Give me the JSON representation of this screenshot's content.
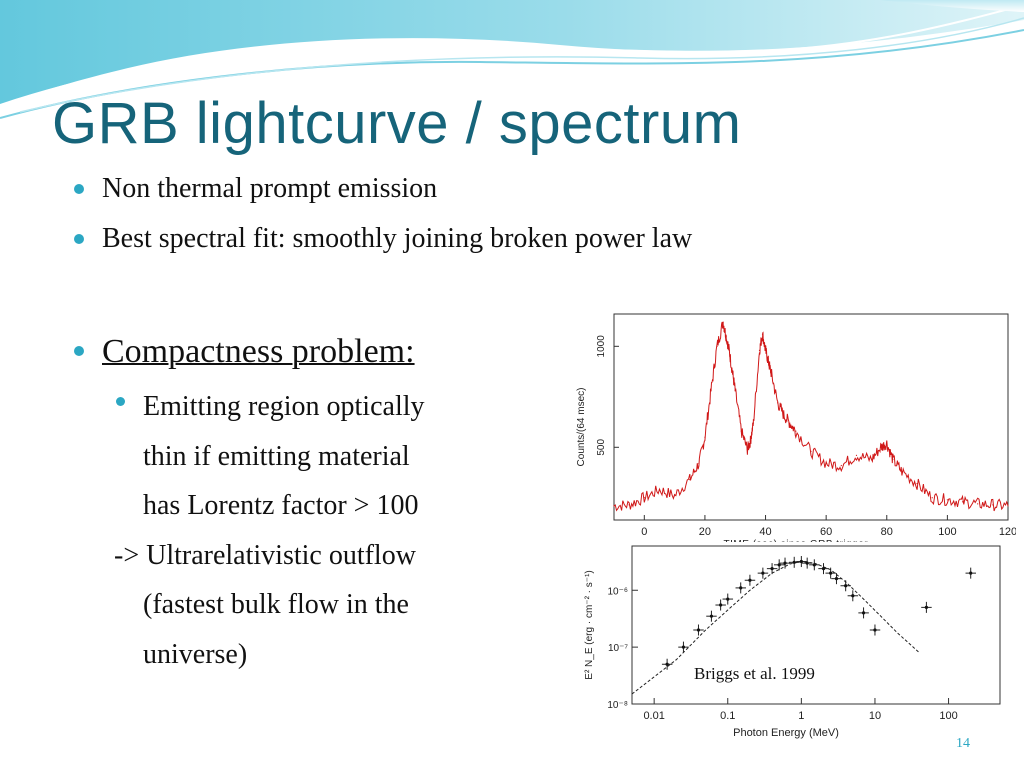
{
  "slide": {
    "title": "GRB lightcurve / spectrum",
    "bullets": [
      "Non thermal prompt emission",
      "Best spectral fit: smoothly joining broken power law"
    ],
    "heading": "Compactness problem:",
    "sub_lines": [
      "Emitting region optically",
      "thin if emitting material",
      "has Lorentz factor > 100",
      "-> Ultrarelativistic outflow",
      "(fastest bulk flow in the",
      "universe)"
    ],
    "credit": "Briggs et al. 1999",
    "page_number": "14",
    "accent_color": "#2ba7c3",
    "title_color": "#16647a"
  },
  "chart_data": [
    {
      "type": "line",
      "xlabel": "TIME (sec) since GRB trigger",
      "ylabel": "Counts/(64 msec)",
      "x_ticks": [
        "0",
        "20",
        "40",
        "60",
        "80",
        "100",
        "120"
      ],
      "y_ticks": [
        "500",
        "1000"
      ],
      "xlim": [
        -10,
        120
      ],
      "ylim": [
        140,
        1160
      ],
      "color": "#d01818",
      "x": [
        -10,
        -5,
        0,
        5,
        10,
        15,
        18,
        20,
        22,
        24,
        26,
        27,
        28,
        29,
        30,
        32,
        34,
        35,
        36,
        38,
        39,
        40,
        41,
        42,
        44,
        46,
        48,
        50,
        55,
        60,
        65,
        70,
        75,
        78,
        80,
        82,
        85,
        90,
        95,
        100,
        105,
        110,
        115,
        120
      ],
      "y": [
        210,
        215,
        250,
        290,
        260,
        340,
        420,
        550,
        780,
        1000,
        1120,
        1050,
        980,
        880,
        780,
        580,
        490,
        530,
        620,
        980,
        1060,
        980,
        920,
        860,
        720,
        660,
        620,
        580,
        480,
        420,
        410,
        460,
        440,
        500,
        520,
        440,
        380,
        320,
        250,
        240,
        230,
        220,
        215,
        210
      ]
    },
    {
      "type": "scatter",
      "xlabel": "Photon Energy (MeV)",
      "ylabel": "E² N_E (erg · cm⁻² · s⁻¹)",
      "x_ticks": [
        "0.01",
        "0.1",
        "1",
        "10",
        "100"
      ],
      "y_ticks": [
        "10⁻⁸",
        "10⁻⁷",
        "10⁻⁶"
      ],
      "xscale": "log",
      "yscale": "log",
      "xlim": [
        0.005,
        500
      ],
      "ylim": [
        1e-08,
        6e-06
      ],
      "series": [
        {
          "x": [
            0.015,
            0.025,
            0.04,
            0.06,
            0.08,
            0.1,
            0.15,
            0.2,
            0.3,
            0.4,
            0.5,
            0.6,
            0.8,
            1.0,
            1.2,
            1.5,
            2.0,
            2.5,
            3.0,
            4.0,
            5.0,
            7.0,
            10,
            50,
            200
          ],
          "y": [
            5e-08,
            1e-07,
            2e-07,
            3.5e-07,
            5.5e-07,
            7e-07,
            1.1e-06,
            1.5e-06,
            2e-06,
            2.4e-06,
            2.8e-06,
            3e-06,
            3.1e-06,
            3.2e-06,
            3e-06,
            2.8e-06,
            2.4e-06,
            2e-06,
            1.6e-06,
            1.2e-06,
            8e-07,
            4e-07,
            2e-07,
            5e-07,
            2e-06
          ]
        },
        {
          "name": "",
          "x": [
            0.005,
            0.02,
            0.05,
            0.1,
            0.2,
            0.4,
            0.7,
            1.0,
            1.5,
            2.5,
            4,
            7,
            12,
            20,
            40
          ],
          "y": [
            1.5e-08,
            6e-08,
            2e-07,
            4.5e-07,
            1e-06,
            2e-06,
            2.9e-06,
            3.2e-06,
            3e-06,
            2.3e-06,
            1.4e-06,
            7e-07,
            3.5e-07,
            1.8e-07,
            8e-08
          ]
        }
      ]
    }
  ]
}
